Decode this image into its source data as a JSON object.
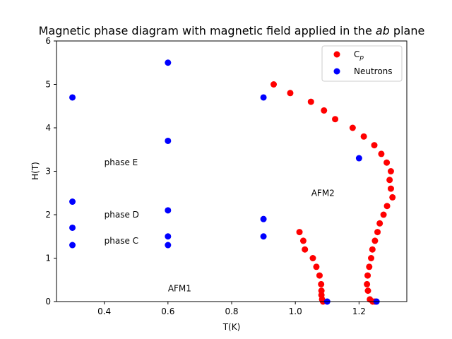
{
  "chart_data": {
    "type": "scatter",
    "title_prefix": "Magnetic phase diagram with magnetic field applied in the ",
    "title_italic": "ab",
    "title_suffix": " plane",
    "xlabel": "T(K)",
    "ylabel": "H(T)",
    "xlim": [
      0.25,
      1.35
    ],
    "ylim": [
      0,
      6
    ],
    "xticks": [
      0.4,
      0.6,
      0.8,
      1.0,
      1.2
    ],
    "xtick_labels": [
      "0.4",
      "0.6",
      "0.8",
      "1.0",
      "1.2"
    ],
    "yticks": [
      0,
      1,
      2,
      3,
      4,
      5,
      6
    ],
    "ytick_labels": [
      "0",
      "1",
      "2",
      "3",
      "4",
      "5",
      "6"
    ],
    "grid": false,
    "legend_position": "top-right",
    "series": [
      {
        "name": "C",
        "name_subscript": "p",
        "color": "#ff0000",
        "x": [
          0.932,
          0.984,
          1.049,
          1.09,
          1.125,
          1.18,
          1.215,
          1.248,
          1.27,
          1.287,
          1.3,
          1.296,
          1.3,
          1.305,
          1.288,
          1.277,
          1.265,
          1.258,
          1.25,
          1.242,
          1.238,
          1.232,
          1.227,
          1.225,
          1.228,
          1.234,
          1.243,
          1.25,
          1.013,
          1.025,
          1.03,
          1.055,
          1.066,
          1.076,
          1.081,
          1.082,
          1.082,
          1.084,
          1.087
        ],
        "y": [
          5.0,
          4.8,
          4.6,
          4.4,
          4.2,
          4.0,
          3.8,
          3.6,
          3.4,
          3.2,
          3.0,
          2.8,
          2.6,
          2.4,
          2.2,
          2.0,
          1.8,
          1.6,
          1.4,
          1.2,
          1.0,
          0.8,
          0.6,
          0.4,
          0.25,
          0.05,
          0.0,
          0.0,
          1.6,
          1.4,
          1.2,
          1.0,
          0.8,
          0.6,
          0.4,
          0.25,
          0.15,
          0.05,
          0.0
        ]
      },
      {
        "name": "Neutrons",
        "color": "#0000ff",
        "x": [
          0.3,
          0.3,
          0.3,
          0.3,
          0.6,
          0.6,
          0.6,
          0.6,
          0.6,
          0.9,
          0.9,
          0.9,
          1.2,
          1.1,
          1.255
        ],
        "y": [
          4.7,
          2.3,
          1.7,
          1.3,
          5.5,
          3.7,
          2.1,
          1.5,
          1.3,
          4.7,
          1.9,
          1.5,
          3.3,
          0.0,
          0.0
        ]
      }
    ],
    "annotations": [
      {
        "text": "phase E",
        "x": 0.4,
        "y": 3.2
      },
      {
        "text": "phase D",
        "x": 0.4,
        "y": 2.0
      },
      {
        "text": "phase C",
        "x": 0.4,
        "y": 1.4
      },
      {
        "text": "AFM1",
        "x": 0.6,
        "y": 0.3
      },
      {
        "text": "AFM2",
        "x": 1.05,
        "y": 2.5
      }
    ]
  }
}
